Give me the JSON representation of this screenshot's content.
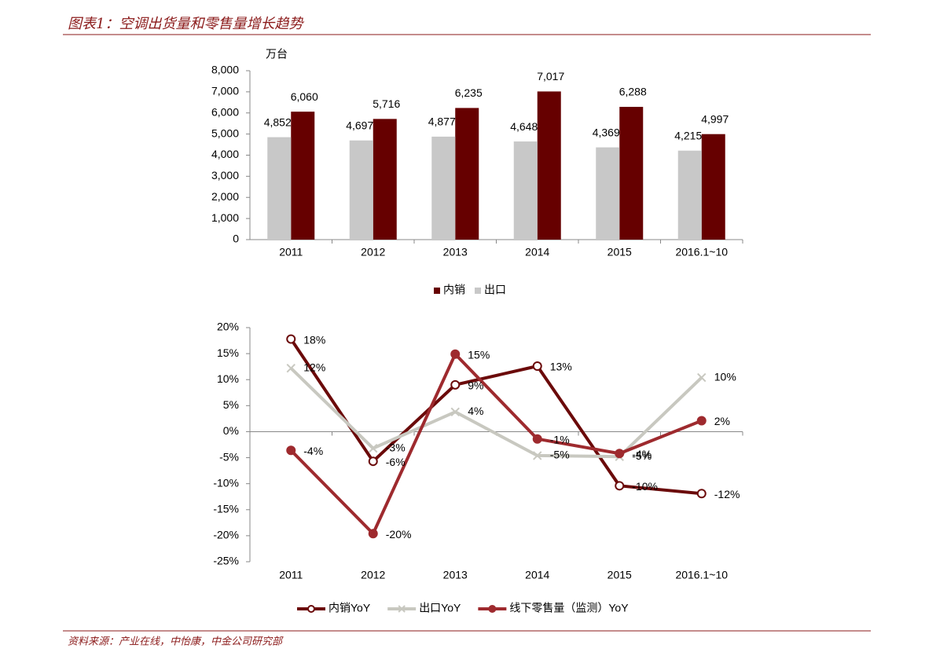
{
  "header": {
    "title": "图表1：空调出货量和零售量增长趋势"
  },
  "footer": {
    "source": "资料来源：产业在线，中怡康，中金公司研究部"
  },
  "chart_data": [
    {
      "type": "bar",
      "y_label": "万台",
      "categories": [
        "2011",
        "2012",
        "2013",
        "2014",
        "2015",
        "2016.1~10"
      ],
      "series": [
        {
          "name": "内销",
          "color": "#660000",
          "values": [
            6060,
            5716,
            6235,
            7017,
            6288,
            4997
          ],
          "value_labels": [
            "6,060",
            "5,716",
            "6,235",
            "7,017",
            "6,288",
            "4,997"
          ]
        },
        {
          "name": "出口",
          "color": "#c8c8c8",
          "values": [
            4852,
            4697,
            4877,
            4648,
            4369,
            4215
          ],
          "value_labels": [
            "4,852",
            "4,697",
            "4,877",
            "4,648",
            "4,369",
            "4,215"
          ]
        }
      ],
      "ylim": [
        0,
        8000
      ],
      "yticks": [
        0,
        {
          "value": 1000,
          "label": "1,000"
        },
        {
          "value": 2000,
          "label": "2,000"
        },
        {
          "value": 3000,
          "label": "3,000"
        },
        {
          "value": 4000,
          "label": "4,000"
        },
        {
          "value": 5000,
          "label": "5,000"
        },
        {
          "value": 6000,
          "label": "6,000"
        },
        {
          "value": 7000,
          "label": "7,000"
        },
        {
          "value": 8000,
          "label": "8,000"
        }
      ]
    },
    {
      "type": "line",
      "categories": [
        "2011",
        "2012",
        "2013",
        "2014",
        "2015",
        "2016.1~10"
      ],
      "series": [
        {
          "name": "内销YoY",
          "color": "#6b0a0a",
          "marker": "open-circle",
          "values": [
            17.8,
            -5.7,
            9.0,
            12.6,
            -10.4,
            -11.9
          ],
          "value_labels": [
            "18%",
            "-6%",
            "9%",
            "13%",
            "-10%",
            "-12%"
          ]
        },
        {
          "name": "出口YoY",
          "color": "#c8c8c0",
          "marker": "cross",
          "values": [
            12.2,
            -3.2,
            3.8,
            -4.6,
            -4.8,
            10.4
          ],
          "value_labels": [
            "12%",
            "-3%",
            "4%",
            "-5%",
            "-5%",
            "10%"
          ]
        },
        {
          "name": "线下零售量（监测）YoY",
          "color": "#9e2a2e",
          "marker": "filled-circle",
          "values": [
            -3.6,
            -19.6,
            14.9,
            -1.4,
            -4.2,
            2.1
          ],
          "value_labels": [
            "-4%",
            "-20%",
            "15%",
            "-1%",
            "-4%",
            "2%"
          ]
        }
      ],
      "ylim": [
        -25,
        20
      ],
      "yticks": [
        {
          "value": -25,
          "label": "-25%"
        },
        {
          "value": -20,
          "label": "-20%"
        },
        {
          "value": -15,
          "label": "-15%"
        },
        {
          "value": -10,
          "label": "-10%"
        },
        {
          "value": -5,
          "label": "-5%"
        },
        {
          "value": 0,
          "label": "0%"
        },
        {
          "value": 5,
          "label": "5%"
        },
        {
          "value": 10,
          "label": "10%"
        },
        {
          "value": 15,
          "label": "15%"
        },
        {
          "value": 20,
          "label": "20%"
        }
      ]
    }
  ]
}
